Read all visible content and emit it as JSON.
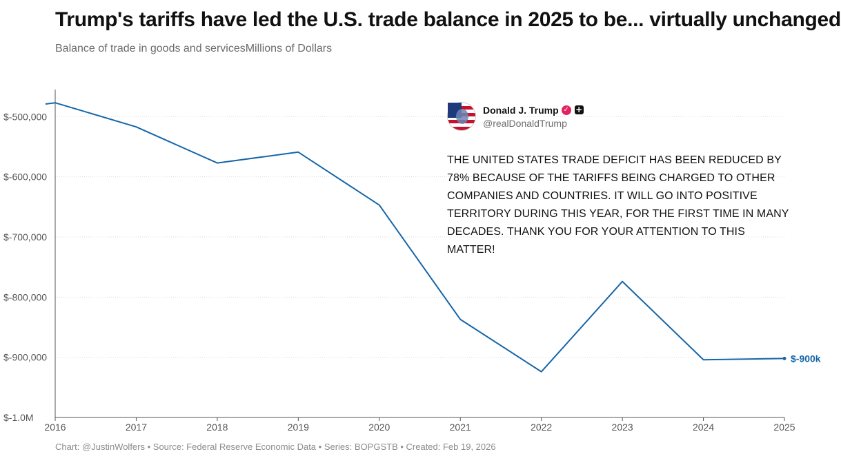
{
  "header": {
    "title": "Trump's tariffs have led the U.S. trade balance in 2025 to be... virtually unchanged",
    "subtitle": "Balance of trade in goods and servicesMillions of Dollars"
  },
  "footer": {
    "credit": "Chart: @JustinWolfers • Source: Federal Reserve Economic Data • Series: BOPGSTB • Created: Feb 19, 2026"
  },
  "tweet": {
    "name": "Donald J. Trump",
    "handle": "@realDonaldTrump",
    "text": "THE UNITED STATES TRADE DEFICIT HAS BEEN REDUCED BY 78% BECAUSE OF THE TARIFFS BEING CHARGED TO OTHER COMPANIES AND COUNTRIES. IT WILL GO INTO POSITIVE TERRITORY DURING THIS YEAR, FOR THE FIRST TIME IN MANY DECADES. THANK YOU FOR YOUR ATTENTION TO THIS MATTER!",
    "verified_icon": "verified-badge-icon",
    "affiliate_icon": "plus-square-icon"
  },
  "chart_data": {
    "type": "line",
    "title": "Trump's tariffs have led the U.S. trade balance in 2025 to be... virtually unchanged",
    "subtitle": "Balance of trade in goods and servicesMillions of Dollars",
    "xlabel": "",
    "ylabel": "",
    "x_ticks": [
      "2016",
      "2017",
      "2018",
      "2019",
      "2020",
      "2021",
      "2022",
      "2023",
      "2024",
      "2025"
    ],
    "y_ticks": [
      {
        "value": -500000,
        "label": "$-500,000"
      },
      {
        "value": -600000,
        "label": "$-600,000"
      },
      {
        "value": -700000,
        "label": "$-700,000"
      },
      {
        "value": -800000,
        "label": "$-800,000"
      },
      {
        "value": -900000,
        "label": "$-900,000"
      },
      {
        "value": -1000000,
        "label": "$-1.0M"
      }
    ],
    "xlim": [
      2016,
      2025
    ],
    "ylim": [
      -1000000,
      -455000
    ],
    "grid": true,
    "series": [
      {
        "color": "#1565a8",
        "points": [
          {
            "x": 2015.88,
            "y": -479000
          },
          {
            "x": 2016,
            "y": -477000
          },
          {
            "x": 2017,
            "y": -517000
          },
          {
            "x": 2018,
            "y": -577000
          },
          {
            "x": 2019,
            "y": -559000
          },
          {
            "x": 2020,
            "y": -647000
          },
          {
            "x": 2021,
            "y": -837000
          },
          {
            "x": 2022,
            "y": -924000
          },
          {
            "x": 2023,
            "y": -774000
          },
          {
            "x": 2024,
            "y": -904000
          },
          {
            "x": 2025,
            "y": -902000
          }
        ]
      }
    ],
    "end_label": "$-900k",
    "end_label_color": "#1565a8",
    "gridline_color": "#dcdcdc",
    "axis_color": "#555555"
  }
}
